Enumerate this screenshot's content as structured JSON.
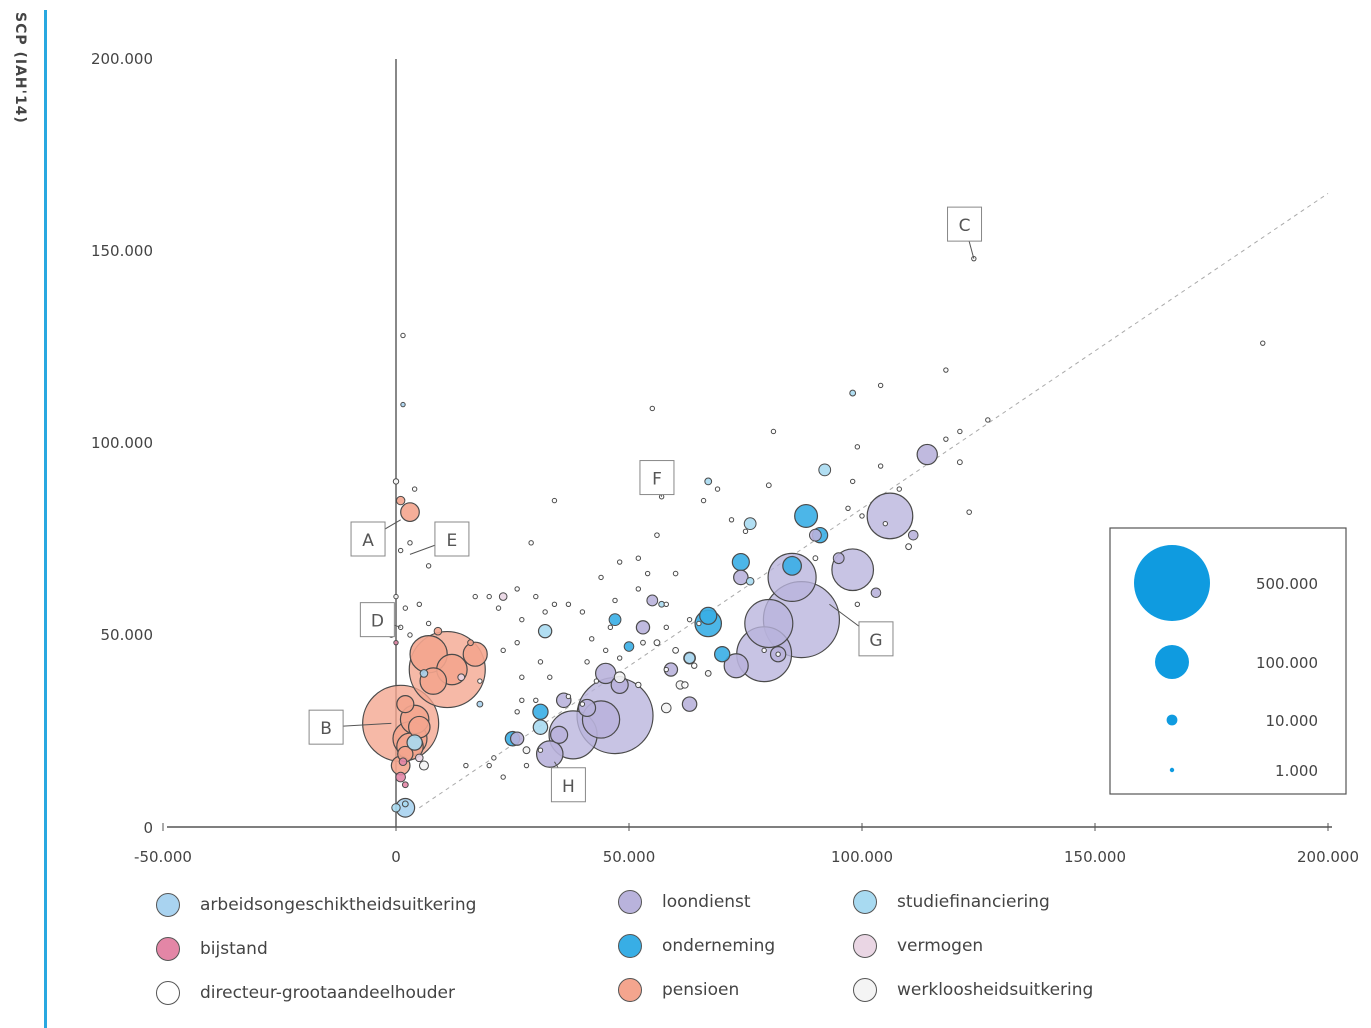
{
  "side_title": "SCP (IAH'14)",
  "colors": {
    "accent": "#29a8e0",
    "arbeidsongeschiktheidsuitkering": "#a9d3f0",
    "bijstand": "#e386a6",
    "directeur-grootaandeelhouder": "#ffffff",
    "loondienst": "#b9b3dc",
    "onderneming": "#38aee5",
    "pensioen": "#f4a58e",
    "studiefinanciering": "#a8daf1",
    "vermogen": "#ead6e4",
    "werkloosheidsuitkering": "#f4f4f4",
    "bubble_legend": "#0f9be0"
  },
  "chart_data": {
    "type": "scatter",
    "x_ticks": [
      "-50.000",
      "0",
      "50.000",
      "100.000",
      "150.000",
      "200.000"
    ],
    "y_ticks": [
      "0",
      "50.000",
      "100.000",
      "150.000",
      "200.000"
    ],
    "xlim": [
      -50000,
      200000
    ],
    "ylim": [
      0,
      200000
    ],
    "diagonal_reference": true,
    "size_legend": [
      {
        "label": "500.000",
        "value": 500000
      },
      {
        "label": "100.000",
        "value": 100000
      },
      {
        "label": "10.000",
        "value": 10000
      },
      {
        "label": "1.000",
        "value": 1000
      }
    ],
    "annotations": [
      {
        "label": "A",
        "x": -6000,
        "y": 75000,
        "point": [
          1000,
          80000
        ]
      },
      {
        "label": "B",
        "x": -15000,
        "y": 26000,
        "point": [
          -1000,
          27000
        ]
      },
      {
        "label": "C",
        "x": 122000,
        "y": 157000,
        "point": [
          124000,
          148000
        ]
      },
      {
        "label": "D",
        "x": -4000,
        "y": 54000,
        "point": [
          1000,
          52000
        ]
      },
      {
        "label": "E",
        "x": 12000,
        "y": 75000,
        "point": [
          3000,
          71000
        ]
      },
      {
        "label": "F",
        "x": 56000,
        "y": 91000,
        "point": [
          57000,
          86000
        ]
      },
      {
        "label": "G",
        "x": 103000,
        "y": 49000,
        "point": [
          93000,
          58000
        ]
      },
      {
        "label": "H",
        "x": 37000,
        "y": 11000,
        "point": [
          34000,
          17000
        ]
      }
    ],
    "series": [
      {
        "name": "arbeidsongeschiktheidsuitkering",
        "points": [
          [
            2000,
            5000,
            30000
          ],
          [
            1500,
            110000,
            1500
          ],
          [
            18000,
            32000,
            3000
          ],
          [
            6000,
            40000,
            5000
          ]
        ]
      },
      {
        "name": "bijstand",
        "points": [
          [
            1000,
            13000,
            8000
          ],
          [
            1500,
            17000,
            5000
          ],
          [
            0,
            48000,
            1500
          ],
          [
            2000,
            11000,
            3000
          ]
        ]
      },
      {
        "name": "directeur-grootaandeelhouder",
        "points": [
          [
            1500,
            128000,
            1000
          ],
          [
            0,
            90000,
            2500
          ],
          [
            4000,
            88000,
            500
          ],
          [
            1000,
            72000,
            700
          ],
          [
            3000,
            74000,
            500
          ],
          [
            7000,
            68000,
            400
          ],
          [
            0,
            60000,
            900
          ],
          [
            2000,
            57000,
            700
          ],
          [
            5000,
            58000,
            400
          ],
          [
            1000,
            52000,
            700
          ],
          [
            3000,
            50000,
            700
          ],
          [
            124000,
            148000,
            1300
          ],
          [
            186000,
            126000,
            800
          ],
          [
            118000,
            119000,
            800
          ],
          [
            127000,
            106000,
            600
          ],
          [
            81000,
            103000,
            900
          ],
          [
            55000,
            109000,
            500
          ],
          [
            104000,
            115000,
            500
          ],
          [
            99000,
            99000,
            400
          ],
          [
            104000,
            94000,
            900
          ],
          [
            121000,
            103000,
            600
          ],
          [
            118000,
            101000,
            700
          ],
          [
            121000,
            95000,
            2000
          ],
          [
            123000,
            82000,
            1800
          ],
          [
            110000,
            73000,
            3000
          ],
          [
            99000,
            58000,
            800
          ],
          [
            57000,
            86000,
            1300
          ],
          [
            69000,
            88000,
            1000
          ],
          [
            66000,
            85000,
            400
          ],
          [
            72000,
            80000,
            1300
          ],
          [
            75000,
            77000,
            500
          ],
          [
            80000,
            89000,
            2000
          ],
          [
            90000,
            70000,
            2000
          ],
          [
            34000,
            85000,
            500
          ],
          [
            29000,
            74000,
            600
          ],
          [
            30000,
            60000,
            600
          ],
          [
            22000,
            57000,
            700
          ],
          [
            20000,
            60000,
            1200
          ],
          [
            26000,
            62000,
            800
          ],
          [
            27000,
            54000,
            700
          ],
          [
            34000,
            58000,
            500
          ],
          [
            37000,
            58000,
            500
          ],
          [
            40000,
            56000,
            1000
          ],
          [
            44000,
            65000,
            1300
          ],
          [
            48000,
            69000,
            1000
          ],
          [
            52000,
            70000,
            900
          ],
          [
            56000,
            76000,
            1800
          ],
          [
            54000,
            66000,
            1200
          ],
          [
            52000,
            62000,
            1600
          ],
          [
            60000,
            66000,
            1800
          ],
          [
            56000,
            48000,
            3000
          ],
          [
            60000,
            46000,
            3000
          ],
          [
            52000,
            37000,
            2500
          ],
          [
            41000,
            43000,
            1400
          ],
          [
            48000,
            44000,
            1300
          ],
          [
            47000,
            59000,
            700
          ],
          [
            58000,
            52000,
            1200
          ],
          [
            20000,
            16000,
            600
          ],
          [
            23000,
            13000,
            1300
          ],
          [
            21000,
            18000,
            800
          ],
          [
            28000,
            16000,
            900
          ],
          [
            31000,
            20000,
            700
          ],
          [
            27000,
            33000,
            1700
          ],
          [
            26000,
            30000,
            900
          ],
          [
            30000,
            33000,
            1200
          ],
          [
            15000,
            16000,
            900
          ],
          [
            40000,
            32000,
            1400
          ],
          [
            43000,
            38000,
            1200
          ],
          [
            62000,
            37000,
            3500
          ],
          [
            65000,
            53000,
            1000
          ],
          [
            58000,
            58000,
            800
          ],
          [
            63000,
            54000,
            900
          ],
          [
            58000,
            41000,
            1400
          ],
          [
            64000,
            42000,
            2500
          ],
          [
            37000,
            34000,
            800
          ],
          [
            23000,
            46000,
            900
          ],
          [
            27000,
            39000,
            700
          ],
          [
            33000,
            39000,
            700
          ],
          [
            32000,
            56000,
            700
          ],
          [
            31000,
            43000,
            1000
          ],
          [
            18000,
            38000,
            800
          ],
          [
            17000,
            60000,
            900
          ],
          [
            7000,
            53000,
            600
          ],
          [
            26000,
            48000,
            700
          ],
          [
            42000,
            49000,
            800
          ],
          [
            46000,
            52000,
            1700
          ],
          [
            45000,
            46000,
            700
          ],
          [
            79000,
            46000,
            1400
          ],
          [
            82000,
            45000,
            1400
          ],
          [
            108000,
            88000,
            1200
          ],
          [
            98000,
            90000,
            800
          ],
          [
            97000,
            83000,
            1200
          ],
          [
            100000,
            81000,
            1300
          ],
          [
            105000,
            79000,
            700
          ]
        ]
      },
      {
        "name": "loondienst",
        "points": [
          [
            47000,
            29000,
            500000
          ],
          [
            44000,
            28000,
            120000
          ],
          [
            38000,
            24000,
            200000
          ],
          [
            33000,
            19000,
            60000
          ],
          [
            36000,
            33000,
            18000
          ],
          [
            87000,
            54000,
            500000
          ],
          [
            80000,
            53000,
            200000
          ],
          [
            79000,
            45000,
            260000
          ],
          [
            73000,
            42000,
            50000
          ],
          [
            85000,
            65000,
            200000
          ],
          [
            98000,
            67000,
            150000
          ],
          [
            106000,
            81000,
            180000
          ],
          [
            114000,
            97000,
            35000
          ],
          [
            63000,
            32000,
            18000
          ],
          [
            45000,
            40000,
            35000
          ],
          [
            48000,
            37000,
            25000
          ],
          [
            41000,
            31000,
            25000
          ],
          [
            26000,
            23000,
            15000
          ],
          [
            35000,
            24000,
            25000
          ],
          [
            59000,
            41000,
            15000
          ],
          [
            63000,
            44000,
            12000
          ],
          [
            53000,
            52000,
            15000
          ],
          [
            55000,
            59000,
            10000
          ],
          [
            74000,
            65000,
            18000
          ],
          [
            82000,
            45000,
            20000
          ],
          [
            95000,
            70000,
            10000
          ],
          [
            103000,
            61000,
            8000
          ],
          [
            90000,
            76000,
            12000
          ],
          [
            111000,
            76000,
            8000
          ]
        ]
      },
      {
        "name": "onderneming",
        "points": [
          [
            67000,
            53000,
            60000
          ],
          [
            67000,
            55000,
            25000
          ],
          [
            70000,
            45000,
            20000
          ],
          [
            85000,
            68000,
            30000
          ],
          [
            88000,
            81000,
            45000
          ],
          [
            74000,
            69000,
            25000
          ],
          [
            25000,
            23000,
            18000
          ],
          [
            31000,
            30000,
            20000
          ],
          [
            47000,
            54000,
            12000
          ],
          [
            50000,
            47000,
            8000
          ],
          [
            91000,
            76000,
            20000
          ]
        ]
      },
      {
        "name": "pensioen",
        "points": [
          [
            1000,
            27000,
            500000
          ],
          [
            3000,
            23000,
            100000
          ],
          [
            4000,
            28000,
            70000
          ],
          [
            11000,
            41000,
            500000
          ],
          [
            7000,
            45000,
            120000
          ],
          [
            12000,
            41000,
            80000
          ],
          [
            8000,
            38000,
            60000
          ],
          [
            17000,
            45000,
            50000
          ],
          [
            3000,
            21000,
            60000
          ],
          [
            1000,
            16000,
            30000
          ],
          [
            2000,
            19000,
            20000
          ],
          [
            5000,
            26000,
            40000
          ],
          [
            3000,
            82000,
            30000
          ],
          [
            2000,
            32000,
            25000
          ],
          [
            1000,
            85000,
            6000
          ],
          [
            -1000,
            50000,
            2000
          ],
          [
            9000,
            51000,
            5000
          ],
          [
            16000,
            48000,
            3000
          ]
        ]
      },
      {
        "name": "studiefinanciering",
        "points": [
          [
            0,
            5000,
            6000
          ],
          [
            2000,
            6000,
            3000
          ],
          [
            4000,
            22000,
            20000
          ],
          [
            31000,
            26000,
            18000
          ],
          [
            32000,
            51000,
            15000
          ],
          [
            98000,
            113000,
            3000
          ],
          [
            92000,
            93000,
            12000
          ],
          [
            76000,
            79000,
            12000
          ],
          [
            67000,
            90000,
            4000
          ],
          [
            76000,
            64000,
            5000
          ],
          [
            63000,
            44000,
            10000
          ],
          [
            57000,
            58000,
            3000
          ]
        ]
      },
      {
        "name": "vermogen",
        "points": [
          [
            23000,
            60000,
            5000
          ],
          [
            14000,
            39000,
            4000
          ],
          [
            5000,
            18000,
            5000
          ]
        ]
      },
      {
        "name": "werkloosheidsuitkering",
        "points": [
          [
            6000,
            16000,
            7000
          ],
          [
            48000,
            39000,
            10000
          ],
          [
            58000,
            31000,
            8000
          ],
          [
            61000,
            37000,
            6000
          ],
          [
            67000,
            40000,
            3000
          ],
          [
            53000,
            48000,
            2000
          ],
          [
            28000,
            20000,
            4000
          ]
        ]
      }
    ]
  },
  "legend": [
    {
      "key": "arbeidsongeschiktheidsuitkering",
      "label": "arbeidsongeschiktheidsuitkering"
    },
    {
      "key": "bijstand",
      "label": "bijstand"
    },
    {
      "key": "directeur-grootaandeelhouder",
      "label": "directeur-grootaandeelhouder"
    },
    {
      "key": "loondienst",
      "label": "loondienst"
    },
    {
      "key": "onderneming",
      "label": "onderneming"
    },
    {
      "key": "pensioen",
      "label": "pensioen"
    },
    {
      "key": "studiefinanciering",
      "label": "studiefinanciering"
    },
    {
      "key": "vermogen",
      "label": "vermogen"
    },
    {
      "key": "werkloosheidsuitkering",
      "label": "werkloosheidsuitkering"
    }
  ]
}
